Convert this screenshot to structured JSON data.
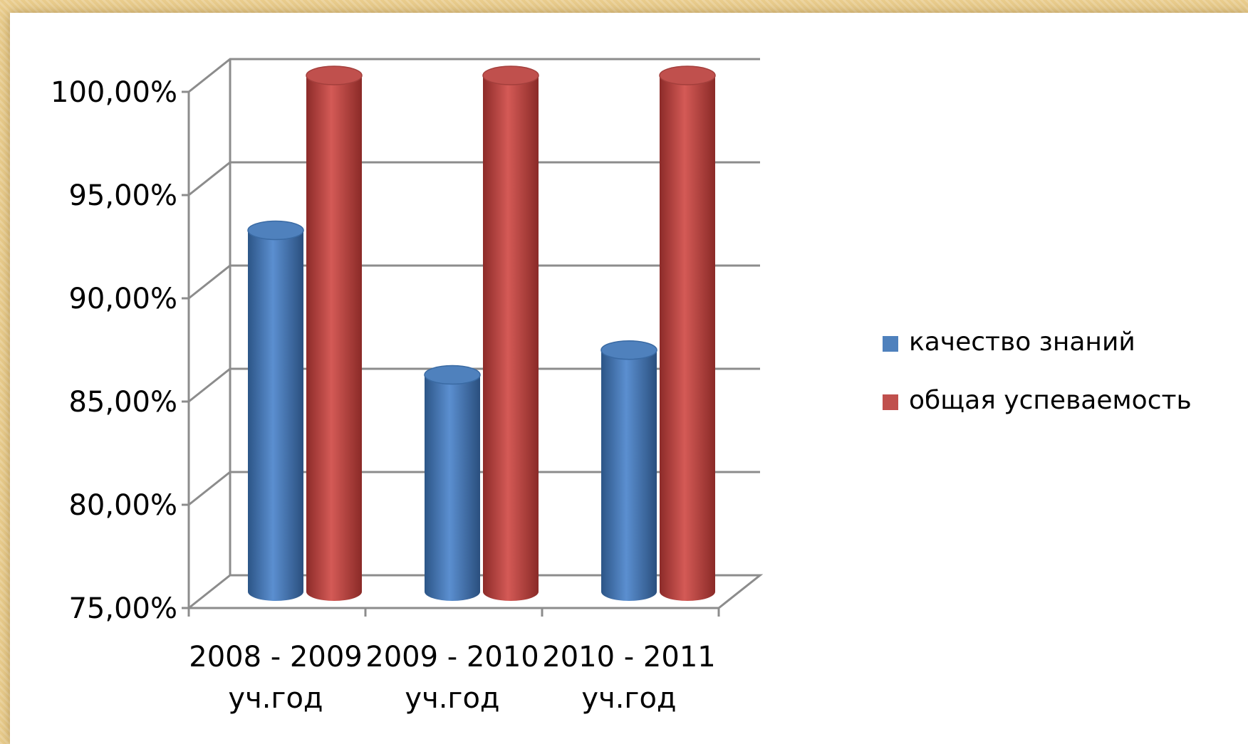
{
  "chart_data": {
    "type": "bar",
    "style": "3d-cylinder",
    "categories": [
      [
        "2008 - 2009",
        "уч.год"
      ],
      [
        "2009 - 2010",
        "уч.год"
      ],
      [
        "2010 - 2011",
        "уч.год"
      ]
    ],
    "series": [
      {
        "name": "качество знаний",
        "color": "#4f81bd",
        "values": [
          92.5,
          85.5,
          86.7
        ]
      },
      {
        "name": "общая успеваемость",
        "color": "#c0504d",
        "values": [
          100,
          100,
          100
        ]
      }
    ],
    "ylim": [
      75,
      100
    ],
    "yticks": [
      {
        "value": 75,
        "label": "75,00%"
      },
      {
        "value": 80,
        "label": "80,00%"
      },
      {
        "value": 85,
        "label": "85,00%"
      },
      {
        "value": 90,
        "label": "90,00%"
      },
      {
        "value": 95,
        "label": "95,00%"
      },
      {
        "value": 100,
        "label": "100,00%"
      }
    ],
    "grid": true,
    "legend": "right"
  }
}
